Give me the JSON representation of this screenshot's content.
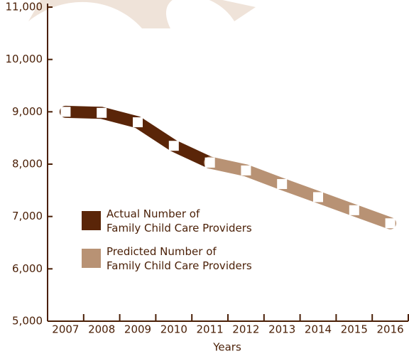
{
  "chart_data": {
    "type": "line",
    "x_label": "Years",
    "categories": [
      "2007",
      "2008",
      "2009",
      "2010",
      "2011",
      "2012",
      "2013",
      "2014",
      "2015",
      "2016"
    ],
    "series": [
      {
        "name": "Actual Number of\nFamily Child Care Providers",
        "color": "#5a2508",
        "values": [
          9000,
          8980,
          8800,
          8350,
          8030,
          null,
          null,
          null,
          null,
          null
        ]
      },
      {
        "name": "Predicted Number of\nFamily Child Care Providers",
        "color": "#b89274",
        "values": [
          null,
          null,
          null,
          null,
          8030,
          7880,
          7620,
          7370,
          7120,
          6870
        ]
      }
    ],
    "ylim": [
      5000,
      11000
    ],
    "yticks": [
      {
        "value": 5000,
        "label": "5,000"
      },
      {
        "value": 6000,
        "label": "6,000"
      },
      {
        "value": 7000,
        "label": "7,000"
      },
      {
        "value": 8000,
        "label": "8,000"
      },
      {
        "value": 9000,
        "label": "9,000"
      },
      {
        "value": 10000,
        "label": "10,000"
      },
      {
        "value": 11000,
        "label": "11,000"
      }
    ]
  }
}
